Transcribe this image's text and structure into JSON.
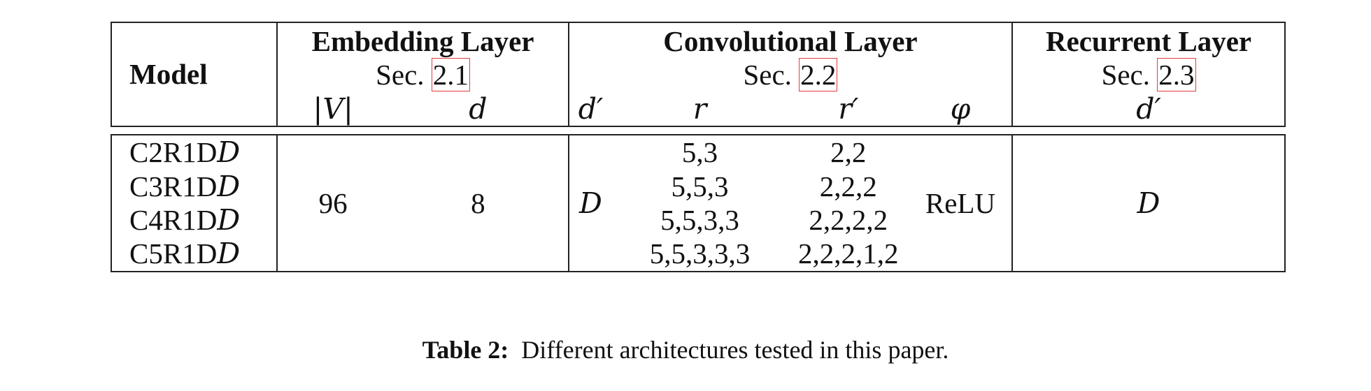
{
  "table": {
    "header": {
      "model": "Model",
      "embedding": {
        "title": "Embedding Layer",
        "sec_prefix": "Sec.",
        "sec_ref": "2.1",
        "col_v": "|V|",
        "col_d": "d"
      },
      "convolutional": {
        "title": "Convolutional Layer",
        "sec_prefix": "Sec.",
        "sec_ref": "2.2",
        "col_dprime": "d′",
        "col_r": "r",
        "col_rprime": "r′",
        "col_phi": "φ"
      },
      "recurrent": {
        "title": "Recurrent Layer",
        "sec_prefix": "Sec.",
        "sec_ref": "2.3",
        "col_dprime": "d′"
      }
    },
    "rows": [
      {
        "model_prefix": "C2R1D",
        "model_suffix": "D",
        "r": "5,3",
        "rprime": "2,2"
      },
      {
        "model_prefix": "C3R1D",
        "model_suffix": "D",
        "r": "5,5,3",
        "rprime": "2,2,2"
      },
      {
        "model_prefix": "C4R1D",
        "model_suffix": "D",
        "r": "5,5,3,3",
        "rprime": "2,2,2,2"
      },
      {
        "model_prefix": "C5R1D",
        "model_suffix": "D",
        "r": "5,5,3,3,3",
        "rprime": "2,2,2,1,2"
      }
    ],
    "shared": {
      "v": "96",
      "d": "8",
      "conv_dprime": "D",
      "phi": "ReLU",
      "rec_dprime": "D"
    }
  },
  "caption": {
    "label": "Table 2:",
    "text": "Different architectures tested in this paper."
  }
}
